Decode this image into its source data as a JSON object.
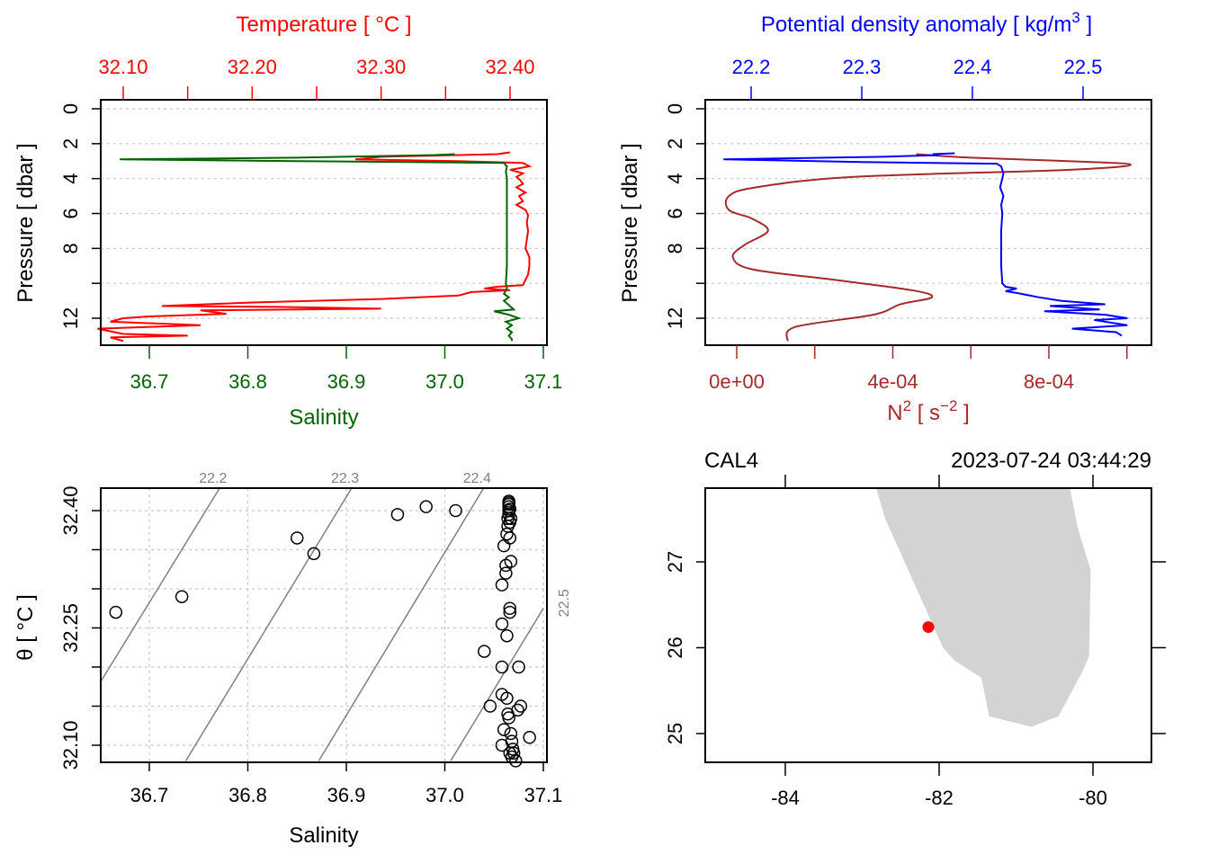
{
  "chart_data": [
    {
      "type": "line",
      "panel": "top-left",
      "title": "",
      "top_axis_label": "Temperature [ °C ]",
      "bottom_axis_label": "Salinity",
      "ylabel": "Pressure [ dbar ]",
      "ylim": [
        13.6,
        -0.5
      ],
      "y_ticks": [
        "0",
        "2",
        "4",
        "6",
        "8",
        "",
        "12"
      ],
      "y_tick_values": [
        0,
        2,
        4,
        6,
        8,
        10,
        12
      ],
      "top_ticks": [
        "32.10",
        "32.20",
        "32.30",
        "32.40"
      ],
      "top_tick_values": [
        32.1,
        32.15,
        32.2,
        32.25,
        32.3,
        32.35,
        32.4
      ],
      "top_tick_labels_at": [
        32.1,
        32.2,
        32.3,
        32.4
      ],
      "bottom_ticks": [
        "36.7",
        "36.8",
        "36.9",
        "37.0",
        "37.1"
      ],
      "bottom_tick_values": [
        36.7,
        36.8,
        36.9,
        37.0,
        37.1
      ],
      "colors": {
        "temperature": "#ff0000",
        "salinity": "#006400",
        "top_axis": "#ff0000",
        "bottom_axis": "#006400"
      },
      "series": [
        {
          "name": "Temperature",
          "axis": "top",
          "points": [
            [
              32.4,
              2.5
            ],
            [
              32.39,
              2.6
            ],
            [
              32.36,
              2.65
            ],
            [
              32.3,
              2.75
            ],
            [
              32.28,
              2.9
            ],
            [
              32.36,
              3.0
            ],
            [
              32.41,
              3.1
            ],
            [
              32.415,
              3.3
            ],
            [
              32.4,
              3.5
            ],
            [
              32.41,
              3.7
            ],
            [
              32.405,
              3.9
            ],
            [
              32.408,
              4.1
            ],
            [
              32.41,
              4.3
            ],
            [
              32.405,
              4.5
            ],
            [
              32.412,
              4.8
            ],
            [
              32.407,
              5.0
            ],
            [
              32.41,
              5.3
            ],
            [
              32.405,
              5.5
            ],
            [
              32.412,
              5.8
            ],
            [
              32.414,
              6.1
            ],
            [
              32.413,
              6.5
            ],
            [
              32.414,
              7.0
            ],
            [
              32.413,
              7.5
            ],
            [
              32.412,
              8.0
            ],
            [
              32.415,
              8.5
            ],
            [
              32.415,
              9.0
            ],
            [
              32.414,
              9.5
            ],
            [
              32.41,
              10.1
            ],
            [
              32.39,
              10.2
            ],
            [
              32.38,
              10.3
            ],
            [
              32.4,
              10.4
            ],
            [
              32.37,
              10.5
            ],
            [
              32.36,
              10.7
            ],
            [
              32.3,
              10.9
            ],
            [
              32.2,
              11.1
            ],
            [
              32.13,
              11.3
            ],
            [
              32.22,
              11.35
            ],
            [
              32.3,
              11.45
            ],
            [
              32.16,
              11.55
            ],
            [
              32.18,
              11.75
            ],
            [
              32.12,
              11.9
            ],
            [
              32.1,
              12.0
            ],
            [
              32.09,
              12.2
            ],
            [
              32.16,
              12.4
            ],
            [
              32.08,
              12.6
            ],
            [
              32.1,
              12.9
            ],
            [
              32.15,
              13.0
            ],
            [
              32.09,
              13.1
            ],
            [
              32.1,
              13.3
            ]
          ]
        },
        {
          "name": "Salinity",
          "axis": "bottom",
          "points": [
            [
              37.01,
              2.6
            ],
            [
              36.99,
              2.65
            ],
            [
              36.85,
              2.8
            ],
            [
              36.67,
              2.9
            ],
            [
              36.85,
              3.0
            ],
            [
              37.06,
              3.1
            ],
            [
              37.063,
              3.3
            ],
            [
              37.062,
              3.6
            ],
            [
              37.063,
              4.0
            ],
            [
              37.063,
              5.0
            ],
            [
              37.063,
              6.0
            ],
            [
              37.063,
              7.0
            ],
            [
              37.063,
              8.0
            ],
            [
              37.063,
              9.0
            ],
            [
              37.062,
              10.0
            ],
            [
              37.063,
              10.3
            ],
            [
              37.06,
              10.6
            ],
            [
              37.065,
              10.8
            ],
            [
              37.06,
              11.0
            ],
            [
              37.066,
              11.3
            ],
            [
              37.07,
              11.5
            ],
            [
              37.05,
              11.6
            ],
            [
              37.065,
              11.8
            ],
            [
              37.075,
              12.0
            ],
            [
              37.062,
              12.2
            ],
            [
              37.068,
              12.4
            ],
            [
              37.063,
              12.6
            ],
            [
              37.068,
              12.8
            ],
            [
              37.065,
              13.0
            ],
            [
              37.068,
              13.2
            ],
            [
              37.068,
              13.3
            ]
          ]
        }
      ]
    },
    {
      "type": "line",
      "panel": "top-right",
      "top_axis_label": "Potential density anomaly [ kg/m",
      "top_axis_sup": "3",
      "top_axis_close": " ]",
      "bottom_axis_label": "N",
      "bottom_axis_sup1": "2",
      "bottom_axis_mid": " [ s",
      "bottom_axis_sup2": "−2",
      "bottom_axis_close": " ]",
      "ylabel": "Pressure [ dbar ]",
      "ylim": [
        13.6,
        -0.5
      ],
      "y_ticks": [
        "0",
        "2",
        "4",
        "6",
        "8",
        "",
        "12"
      ],
      "y_tick_values": [
        0,
        2,
        4,
        6,
        8,
        10,
        12
      ],
      "top_ticks": [
        "22.2",
        "22.3",
        "22.4",
        "22.5"
      ],
      "top_tick_values": [
        22.2,
        22.3,
        22.4,
        22.5
      ],
      "bottom_ticks": [
        "0e+00",
        "4e-04",
        "8e-04"
      ],
      "bottom_tick_values": [
        0,
        0.0002,
        0.0004,
        0.0006,
        0.0008,
        0.001
      ],
      "bottom_tick_labels_at": [
        0,
        0.0004,
        0.0008
      ],
      "colors": {
        "density": "#0000ff",
        "n2": "#a52a2a",
        "top_axis": "#0000ff",
        "bottom_axis": "#a52a2a"
      },
      "series": [
        {
          "name": "Potential density anomaly",
          "axis": "top",
          "points": [
            [
              22.384,
              2.55
            ],
            [
              22.364,
              2.6
            ],
            [
              22.37,
              2.65
            ],
            [
              22.32,
              2.75
            ],
            [
              22.175,
              2.9
            ],
            [
              22.3,
              3.05
            ],
            [
              22.422,
              3.15
            ],
            [
              22.426,
              3.3
            ],
            [
              22.428,
              3.7
            ],
            [
              22.427,
              4.0
            ],
            [
              22.425,
              4.5
            ],
            [
              22.428,
              5.0
            ],
            [
              22.426,
              5.5
            ],
            [
              22.427,
              6.0
            ],
            [
              22.426,
              7.0
            ],
            [
              22.426,
              8.0
            ],
            [
              22.426,
              9.0
            ],
            [
              22.427,
              10.0
            ],
            [
              22.43,
              10.2
            ],
            [
              22.44,
              10.3
            ],
            [
              22.43,
              10.45
            ],
            [
              22.44,
              10.55
            ],
            [
              22.46,
              10.8
            ],
            [
              22.48,
              11.0
            ],
            [
              22.52,
              11.2
            ],
            [
              22.47,
              11.3
            ],
            [
              22.515,
              11.5
            ],
            [
              22.465,
              11.6
            ],
            [
              22.52,
              11.8
            ],
            [
              22.54,
              12.0
            ],
            [
              22.51,
              12.1
            ],
            [
              22.54,
              12.4
            ],
            [
              22.49,
              12.6
            ],
            [
              22.53,
              12.8
            ],
            [
              22.535,
              13.0
            ]
          ]
        },
        {
          "name": "N2",
          "axis": "bottom",
          "points": [
            [
              0.00046,
              2.6
            ],
            [
              0.0006,
              2.8
            ],
            [
              0.00085,
              3.0
            ],
            [
              0.00101,
              3.2
            ],
            [
              0.00085,
              3.5
            ],
            [
              0.0003,
              3.9
            ],
            [
              5e-05,
              4.5
            ],
            [
              -2e-05,
              5.0
            ],
            [
              -2e-05,
              5.8
            ],
            [
              4e-05,
              6.3
            ],
            [
              8e-05,
              7.0
            ],
            [
              2e-05,
              7.8
            ],
            [
              -1e-05,
              8.5
            ],
            [
              4e-05,
              9.2
            ],
            [
              0.00025,
              9.8
            ],
            [
              0.00045,
              10.4
            ],
            [
              0.0005,
              10.8
            ],
            [
              0.00042,
              11.2
            ],
            [
              0.00035,
              11.8
            ],
            [
              0.00015,
              12.5
            ],
            [
              0.00013,
              13.3
            ]
          ]
        }
      ]
    },
    {
      "type": "scatter",
      "panel": "bottom-left",
      "xlabel": "Salinity",
      "ylabel": "θ [ °C ]",
      "x_ticks": [
        "36.7",
        "36.8",
        "36.9",
        "37.0",
        "37.1"
      ],
      "x_tick_values": [
        36.7,
        36.8,
        36.9,
        37.0,
        37.1
      ],
      "y_ticks": [
        "32.10",
        "32.25",
        "32.40"
      ],
      "y_tick_values": [
        32.1,
        32.15,
        32.2,
        32.25,
        32.3,
        32.35,
        32.4
      ],
      "y_tick_labels_at": [
        32.1,
        32.25,
        32.4
      ],
      "xlim": [
        36.65,
        37.1
      ],
      "ylim": [
        32.08,
        32.43
      ],
      "grid": true,
      "isopycnals": [
        {
          "label": "22.2",
          "from": [
            36.65,
            32.18
          ],
          "to": [
            36.772,
            32.43
          ]
        },
        {
          "label": "22.3",
          "from": [
            36.737,
            32.08
          ],
          "to": [
            36.906,
            32.43
          ]
        },
        {
          "label": "22.4",
          "from": [
            36.872,
            32.08
          ],
          "to": [
            37.04,
            32.43
          ]
        },
        {
          "label": "22.5",
          "from": [
            37.006,
            32.08
          ],
          "to": [
            37.1,
            32.275
          ]
        }
      ],
      "isopycnal_color": "#808080",
      "points": [
        [
          36.666,
          32.27
        ],
        [
          36.733,
          32.29
        ],
        [
          36.85,
          32.365
        ],
        [
          36.867,
          32.345
        ],
        [
          36.952,
          32.395
        ],
        [
          36.981,
          32.405
        ],
        [
          37.011,
          32.4
        ],
        [
          37.04,
          32.22
        ],
        [
          37.046,
          32.15
        ],
        [
          37.058,
          32.305
        ],
        [
          37.058,
          32.255
        ],
        [
          37.058,
          32.2
        ],
        [
          37.058,
          32.165
        ],
        [
          37.058,
          32.1
        ],
        [
          37.06,
          32.12
        ],
        [
          37.06,
          32.355
        ],
        [
          37.062,
          32.33
        ],
        [
          37.062,
          32.32
        ],
        [
          37.063,
          32.37
        ],
        [
          37.064,
          32.38
        ],
        [
          37.064,
          32.39
        ],
        [
          37.065,
          32.395
        ],
        [
          37.065,
          32.4
        ],
        [
          37.065,
          32.405
        ],
        [
          37.065,
          32.41
        ],
        [
          37.065,
          32.412
        ],
        [
          37.065,
          32.408
        ],
        [
          37.066,
          32.402
        ],
        [
          37.066,
          32.385
        ],
        [
          37.067,
          32.39
        ],
        [
          37.066,
          32.365
        ],
        [
          37.067,
          32.335
        ],
        [
          37.066,
          32.275
        ],
        [
          37.066,
          32.27
        ],
        [
          37.063,
          32.24
        ],
        [
          37.063,
          32.16
        ],
        [
          37.064,
          32.14
        ],
        [
          37.065,
          32.135
        ],
        [
          37.067,
          32.115
        ],
        [
          37.068,
          32.105
        ],
        [
          37.069,
          32.095
        ],
        [
          37.07,
          32.09
        ],
        [
          37.068,
          32.085
        ],
        [
          37.072,
          32.08
        ],
        [
          37.075,
          32.2
        ],
        [
          37.074,
          32.145
        ],
        [
          37.077,
          32.15
        ],
        [
          37.086,
          32.11
        ],
        [
          37.066,
          32.09
        ]
      ],
      "point_color": "#000000"
    },
    {
      "type": "scatter",
      "panel": "bottom-right",
      "map": true,
      "station": "CAL4",
      "datetime": "2023-07-24 03:44:29",
      "x_ticks": [
        "-84",
        "-82",
        "-80"
      ],
      "x_tick_values": [
        -84,
        -82,
        -80
      ],
      "y_ticks": [
        "25",
        "26",
        "27"
      ],
      "y_tick_values": [
        25,
        26,
        27
      ],
      "xlim": [
        -85.03,
        -79.23
      ],
      "ylim": [
        24.66,
        27.86
      ],
      "land_color": "#d3d3d3",
      "coastline": [
        [
          -82.82,
          27.86
        ],
        [
          -82.7,
          27.5
        ],
        [
          -82.4,
          26.9
        ],
        [
          -82.2,
          26.5
        ],
        [
          -81.95,
          26.0
        ],
        [
          -81.8,
          25.85
        ],
        [
          -81.45,
          25.65
        ],
        [
          -81.35,
          25.2
        ],
        [
          -80.8,
          25.08
        ],
        [
          -80.45,
          25.2
        ],
        [
          -80.15,
          25.7
        ],
        [
          -80.05,
          25.9
        ],
        [
          -80.03,
          26.9
        ],
        [
          -80.2,
          27.4
        ],
        [
          -80.3,
          27.86
        ]
      ],
      "points": [
        {
          "lon": -82.14,
          "lat": 26.24,
          "color": "#ff0000"
        }
      ]
    }
  ]
}
